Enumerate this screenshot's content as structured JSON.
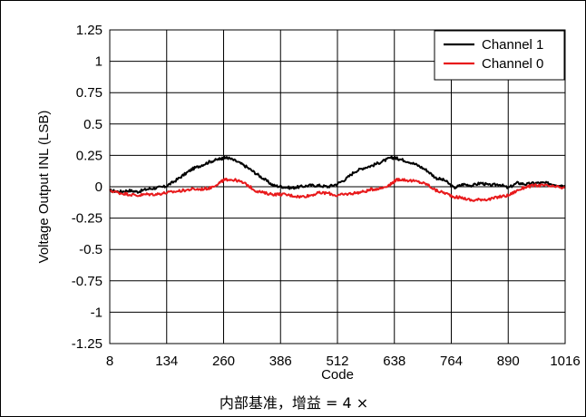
{
  "caption": "内部基准，增益 = 4 ×",
  "chart_data": {
    "type": "line",
    "xlabel": "Code",
    "ylabel": "Voltage Output INL (LSB)",
    "xlim": [
      8,
      1016
    ],
    "ylim": [
      -1.25,
      1.25
    ],
    "x_ticks": [
      8,
      134,
      260,
      386,
      512,
      638,
      764,
      890,
      1016
    ],
    "y_ticks": [
      1.25,
      1,
      0.75,
      0.5,
      0.25,
      0,
      -0.25,
      -0.5,
      -0.75,
      -1,
      -1.25
    ],
    "x_tick_labels": [
      "8",
      "134",
      "260",
      "386",
      "512",
      "638",
      "764",
      "890",
      "1016"
    ],
    "y_tick_labels": [
      "1.25",
      "1",
      "0.75",
      "0.5",
      "0.25",
      "0",
      "-0.25",
      "-0.5",
      "-0.75",
      "-1",
      "-1.25"
    ],
    "grid": true,
    "legend_position": "top-right",
    "series": [
      {
        "name": "Channel 1",
        "color": "#000000",
        "x": [
          8,
          30,
          50,
          70,
          90,
          110,
          130,
          150,
          170,
          190,
          210,
          230,
          250,
          260,
          270,
          290,
          310,
          330,
          350,
          370,
          390,
          410,
          430,
          450,
          470,
          490,
          510,
          530,
          550,
          570,
          590,
          610,
          630,
          640,
          650,
          670,
          690,
          710,
          730,
          750,
          770,
          790,
          810,
          830,
          850,
          870,
          890,
          910,
          930,
          950,
          970,
          990,
          1016
        ],
        "y": [
          -0.03,
          -0.04,
          -0.03,
          -0.04,
          -0.02,
          -0.01,
          0.0,
          0.04,
          0.09,
          0.14,
          0.17,
          0.2,
          0.22,
          0.23,
          0.23,
          0.2,
          0.16,
          0.11,
          0.06,
          0.01,
          0.0,
          -0.01,
          0.0,
          0.01,
          0.01,
          0.0,
          0.02,
          0.06,
          0.12,
          0.15,
          0.17,
          0.2,
          0.23,
          0.23,
          0.22,
          0.2,
          0.17,
          0.13,
          0.07,
          0.05,
          -0.01,
          0.02,
          0.01,
          0.03,
          0.01,
          0.02,
          -0.01,
          0.03,
          0.02,
          0.03,
          0.03,
          0.02,
          0.01
        ]
      },
      {
        "name": "Channel 0",
        "color": "#e8191b",
        "x": [
          8,
          30,
          50,
          70,
          90,
          110,
          130,
          150,
          170,
          190,
          210,
          230,
          250,
          260,
          270,
          290,
          310,
          330,
          350,
          370,
          390,
          410,
          430,
          450,
          470,
          490,
          510,
          530,
          550,
          570,
          590,
          610,
          630,
          640,
          650,
          670,
          690,
          710,
          730,
          750,
          770,
          790,
          810,
          830,
          850,
          870,
          890,
          910,
          930,
          950,
          970,
          990,
          1016
        ],
        "y": [
          -0.03,
          -0.05,
          -0.06,
          -0.07,
          -0.06,
          -0.06,
          -0.05,
          -0.04,
          -0.03,
          -0.02,
          -0.02,
          -0.01,
          0.03,
          0.05,
          0.06,
          0.05,
          0.02,
          -0.03,
          -0.05,
          -0.06,
          -0.06,
          -0.07,
          -0.08,
          -0.07,
          -0.05,
          -0.05,
          -0.07,
          -0.06,
          -0.05,
          -0.04,
          -0.02,
          -0.01,
          0.02,
          0.05,
          0.06,
          0.05,
          0.04,
          0.02,
          -0.03,
          -0.05,
          -0.08,
          -0.09,
          -0.11,
          -0.1,
          -0.1,
          -0.08,
          -0.07,
          -0.03,
          0.0,
          0.01,
          0.01,
          0.0,
          -0.01
        ]
      }
    ]
  }
}
